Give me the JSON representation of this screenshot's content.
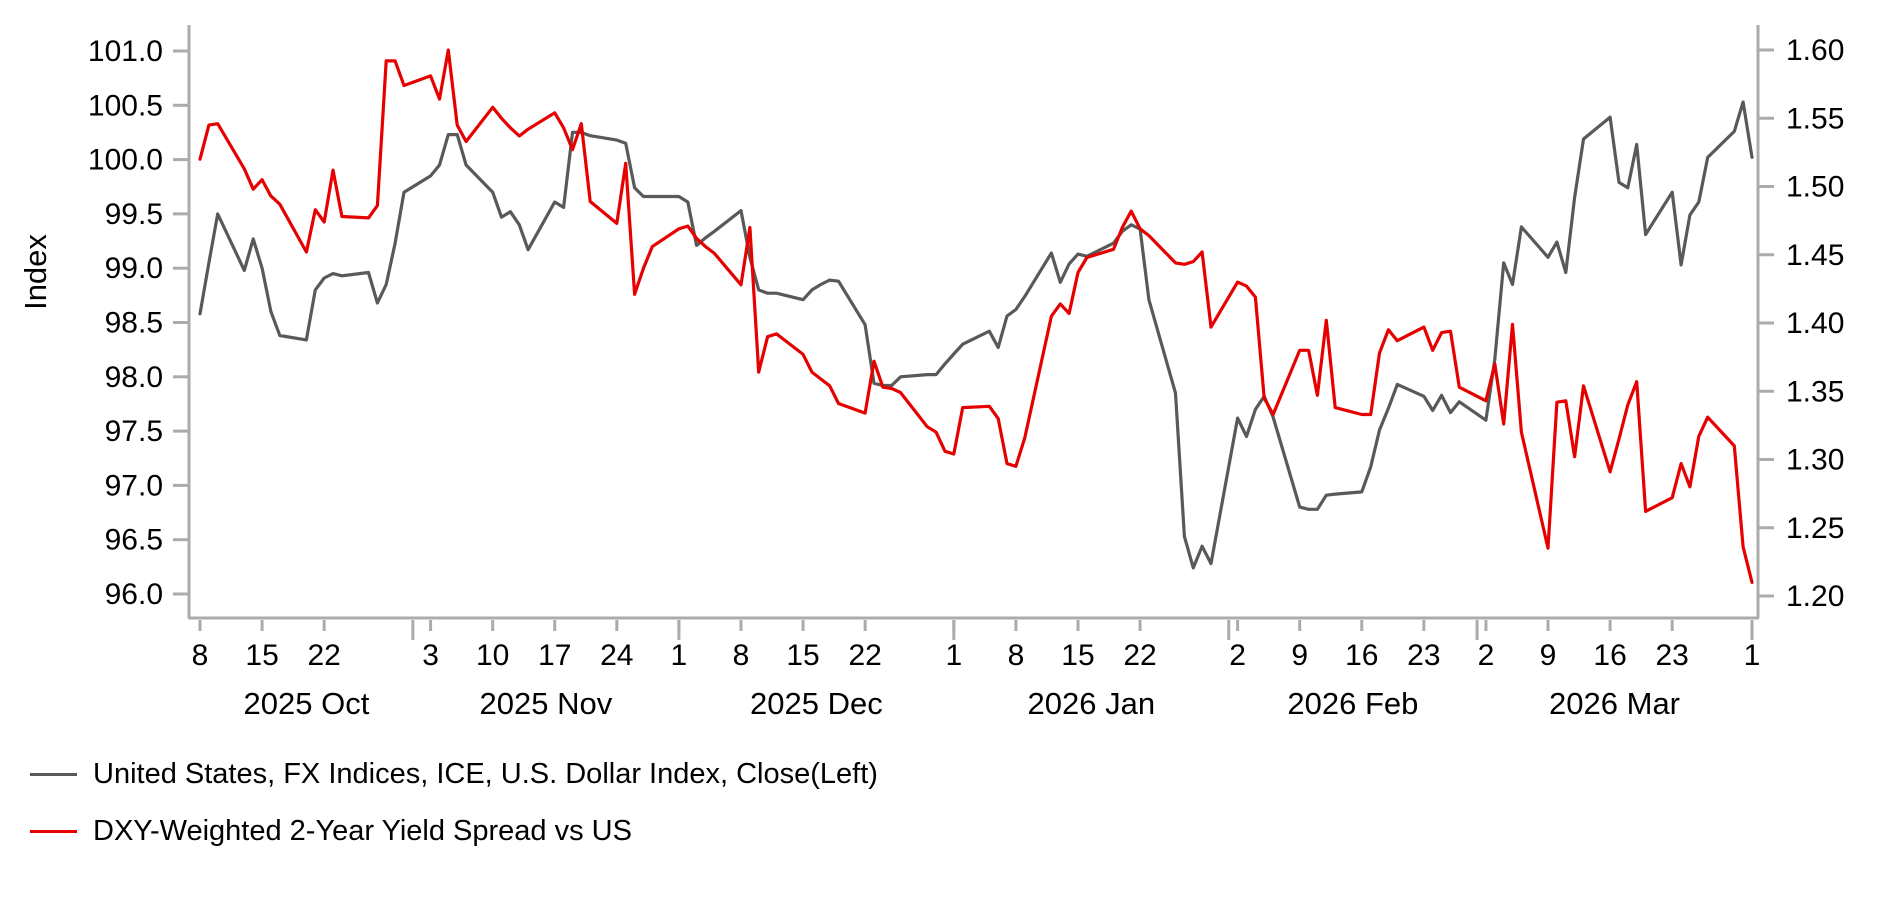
{
  "page": {
    "background": "#ffffff"
  },
  "chart_data": {
    "type": "line",
    "title": "",
    "left_axis": {
      "label": "Index",
      "tick_labels": [
        "101.0",
        "100.5",
        "100.0",
        "99.5",
        "99.0",
        "98.5",
        "98.0",
        "97.5",
        "97.0",
        "96.5",
        "96.0"
      ],
      "tick_values": [
        101.0,
        100.5,
        100.0,
        99.5,
        99.0,
        98.5,
        98.0,
        97.5,
        97.0,
        96.5,
        96.0
      ],
      "ylim": [
        96.0,
        101.0
      ]
    },
    "right_axis": {
      "tick_labels": [
        "1.60",
        "1.55",
        "1.50",
        "1.45",
        "1.40",
        "1.35",
        "1.30",
        "1.25",
        "1.20"
      ],
      "tick_values": [
        1.6,
        1.55,
        1.5,
        1.45,
        1.4,
        1.35,
        1.3,
        1.25,
        1.2
      ],
      "ylim": [
        1.2,
        1.6
      ]
    },
    "x_axis": {
      "start_date": "2025-10-08",
      "end_date": "2026-04-01",
      "day_span": 175,
      "week_ticks": [
        {
          "label": "8",
          "offset": 0
        },
        {
          "label": "15",
          "offset": 7
        },
        {
          "label": "22",
          "offset": 14
        },
        {
          "label": "3",
          "offset": 26
        },
        {
          "label": "10",
          "offset": 33
        },
        {
          "label": "17",
          "offset": 40
        },
        {
          "label": "24",
          "offset": 47
        },
        {
          "label": "1",
          "offset": 54
        },
        {
          "label": "8",
          "offset": 61
        },
        {
          "label": "15",
          "offset": 68
        },
        {
          "label": "22",
          "offset": 75
        },
        {
          "label": "1",
          "offset": 85
        },
        {
          "label": "8",
          "offset": 92
        },
        {
          "label": "15",
          "offset": 99
        },
        {
          "label": "22",
          "offset": 106
        },
        {
          "label": "2",
          "offset": 117
        },
        {
          "label": "9",
          "offset": 124
        },
        {
          "label": "16",
          "offset": 131
        },
        {
          "label": "23",
          "offset": 138
        },
        {
          "label": "2",
          "offset": 145
        },
        {
          "label": "9",
          "offset": 152
        },
        {
          "label": "16",
          "offset": 159
        },
        {
          "label": "23",
          "offset": 166
        },
        {
          "label": "1",
          "offset": 175
        }
      ],
      "month_ticks": [
        24,
        54,
        85,
        116,
        144,
        175
      ],
      "month_labels": [
        {
          "label": "2025 Oct",
          "offset": 12
        },
        {
          "label": "2025 Nov",
          "offset": 39
        },
        {
          "label": "2025 Dec",
          "offset": 69.5
        },
        {
          "label": "2026 Jan",
          "offset": 100.5
        },
        {
          "label": "2026 Feb",
          "offset": 130
        },
        {
          "label": "2026 Mar",
          "offset": 159.5
        }
      ]
    },
    "day_offsets": [
      0,
      1,
      2,
      5,
      6,
      7,
      8,
      9,
      12,
      13,
      14,
      15,
      16,
      19,
      20,
      21,
      22,
      23,
      26,
      27,
      28,
      29,
      30,
      33,
      34,
      35,
      36,
      37,
      40,
      41,
      42,
      43,
      44,
      47,
      48,
      49,
      50,
      51,
      54,
      55,
      56,
      57,
      58,
      61,
      62,
      63,
      64,
      65,
      68,
      69,
      70,
      71,
      72,
      75,
      76,
      77,
      78,
      79,
      82,
      83,
      84,
      85,
      86,
      89,
      90,
      91,
      92,
      93,
      96,
      97,
      98,
      99,
      100,
      103,
      104,
      105,
      106,
      107,
      110,
      111,
      112,
      113,
      114,
      117,
      118,
      119,
      120,
      121,
      124,
      125,
      126,
      127,
      128,
      131,
      132,
      133,
      134,
      135,
      138,
      139,
      140,
      141,
      142,
      145,
      146,
      147,
      148,
      149,
      152,
      153,
      154,
      155,
      156,
      159,
      160,
      161,
      162,
      163,
      166,
      167,
      168,
      169,
      170,
      173,
      174,
      175
    ],
    "series": [
      {
        "name": "United States, FX Indices, ICE, U.S. Dollar Index, Close(Left)",
        "axis": "left",
        "color": "#595959",
        "values": [
          98.58,
          99.05,
          99.5,
          98.98,
          99.27,
          99.0,
          98.6,
          98.38,
          98.34,
          98.8,
          98.91,
          98.95,
          98.93,
          98.96,
          98.68,
          98.85,
          99.23,
          99.7,
          99.85,
          99.95,
          100.23,
          100.23,
          99.95,
          99.7,
          99.47,
          99.52,
          99.4,
          99.17,
          99.61,
          99.56,
          100.25,
          100.25,
          100.22,
          100.18,
          100.15,
          99.74,
          99.66,
          99.66,
          99.66,
          99.61,
          99.21,
          99.28,
          99.34,
          99.53,
          99.1,
          98.8,
          98.77,
          98.77,
          98.71,
          98.8,
          98.85,
          98.89,
          98.88,
          98.48,
          97.94,
          97.92,
          97.92,
          98.0,
          98.02,
          98.02,
          98.12,
          98.21,
          98.3,
          98.42,
          98.27,
          98.56,
          98.62,
          98.74,
          99.14,
          98.87,
          99.04,
          99.13,
          99.11,
          99.23,
          99.34,
          99.4,
          99.36,
          98.71,
          97.85,
          96.53,
          96.24,
          96.44,
          96.28,
          97.62,
          97.45,
          97.7,
          97.82,
          97.63,
          96.8,
          96.78,
          96.78,
          96.91,
          96.92,
          96.94,
          97.17,
          97.51,
          97.71,
          97.93,
          97.82,
          97.69,
          97.83,
          97.67,
          97.77,
          97.6,
          98.16,
          99.05,
          98.85,
          99.38,
          99.1,
          99.24,
          98.96,
          99.65,
          100.19,
          100.39,
          99.79,
          99.74,
          100.14,
          99.31,
          99.7,
          99.03,
          99.49,
          99.61,
          100.02,
          100.26,
          100.53,
          100.02
        ]
      },
      {
        "name": "DXY-Weighted 2-Year Yield Spread vs US",
        "axis": "right",
        "color": "#e60000",
        "values": [
          1.52,
          1.545,
          1.546,
          1.513,
          1.498,
          1.505,
          1.493,
          1.487,
          1.452,
          1.483,
          1.474,
          1.512,
          1.478,
          1.477,
          1.486,
          1.592,
          1.592,
          1.574,
          1.581,
          1.564,
          1.6,
          1.545,
          1.533,
          1.558,
          1.55,
          1.543,
          1.537,
          1.542,
          1.554,
          1.543,
          1.527,
          1.546,
          1.489,
          1.473,
          1.517,
          1.421,
          1.44,
          1.456,
          1.469,
          1.471,
          1.462,
          1.456,
          1.451,
          1.428,
          1.47,
          1.364,
          1.39,
          1.392,
          1.377,
          1.364,
          1.359,
          1.354,
          1.341,
          1.334,
          1.372,
          1.353,
          1.352,
          1.349,
          1.324,
          1.32,
          1.306,
          1.304,
          1.338,
          1.339,
          1.33,
          1.297,
          1.295,
          1.316,
          1.405,
          1.414,
          1.407,
          1.437,
          1.448,
          1.454,
          1.47,
          1.482,
          1.469,
          1.464,
          1.444,
          1.443,
          1.445,
          1.452,
          1.397,
          1.43,
          1.427,
          1.419,
          1.345,
          1.333,
          1.38,
          1.38,
          1.347,
          1.402,
          1.338,
          1.333,
          1.333,
          1.378,
          1.395,
          1.387,
          1.397,
          1.38,
          1.393,
          1.394,
          1.353,
          1.343,
          1.37,
          1.326,
          1.399,
          1.32,
          1.235,
          1.342,
          1.343,
          1.302,
          1.354,
          1.291,
          1.315,
          1.34,
          1.357,
          1.262,
          1.272,
          1.297,
          1.28,
          1.317,
          1.331,
          1.31,
          1.236,
          1.21
        ]
      }
    ],
    "legend": [
      {
        "label": "United States, FX Indices, ICE, U.S. Dollar Index, Close(Left)",
        "color": "#595959"
      },
      {
        "label": "DXY-Weighted 2-Year Yield Spread vs US",
        "color": "#e60000"
      }
    ],
    "grid": false,
    "legend_position": "bottom-left",
    "axis_color": "#ababab"
  }
}
